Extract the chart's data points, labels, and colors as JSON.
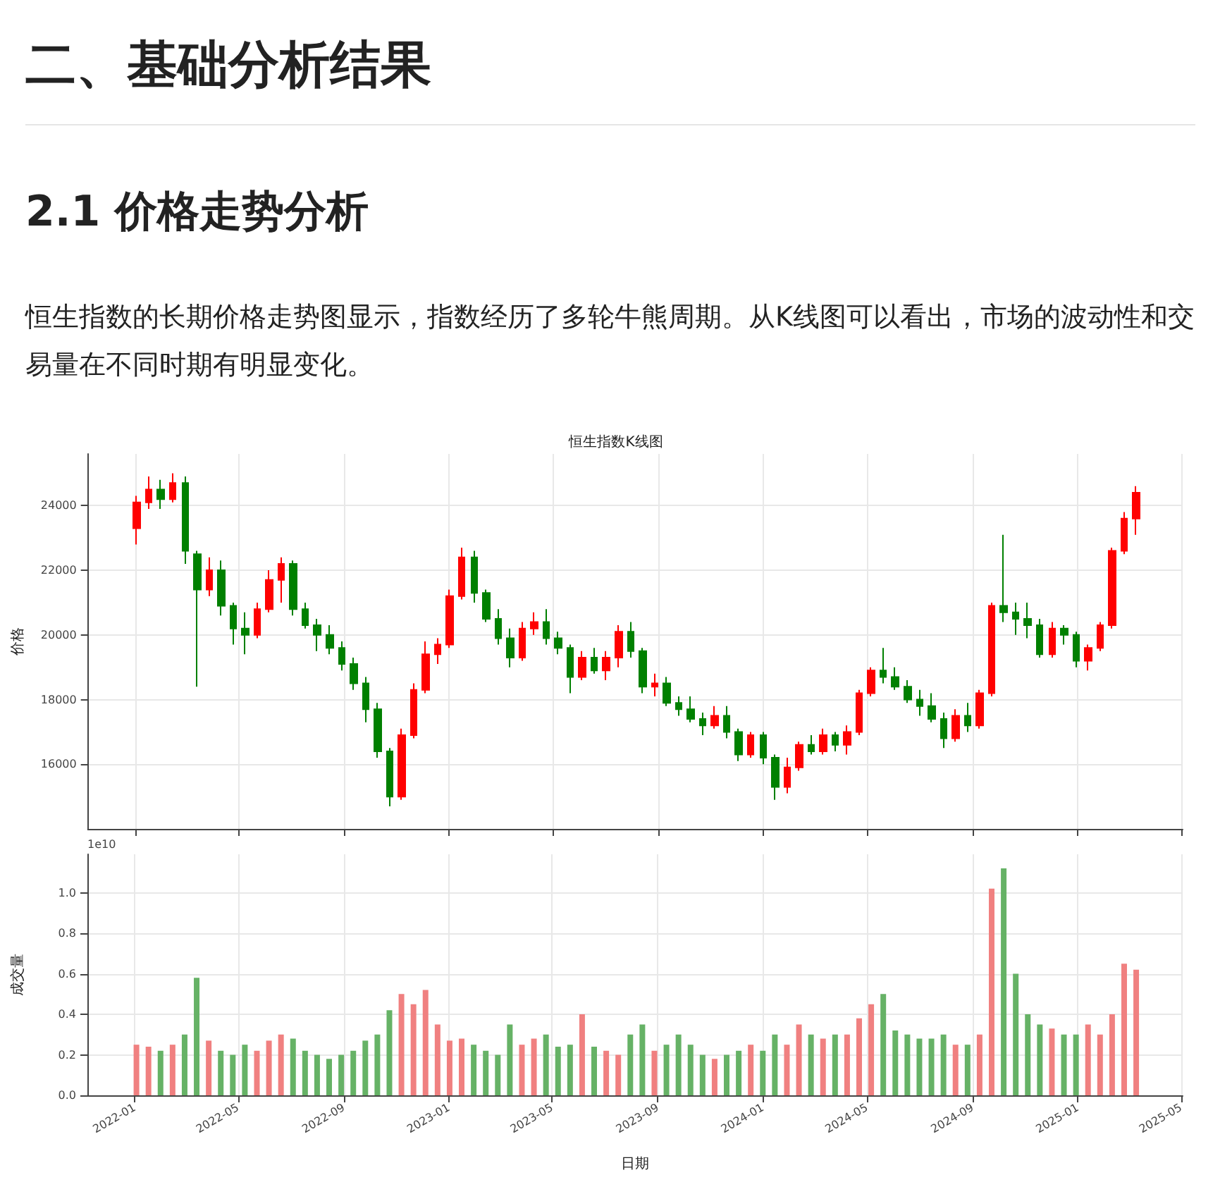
{
  "chart_data": [
    {
      "type": "candlestick",
      "title": "恒生指数K线图",
      "ylabel": "价格",
      "annotations": [
        "二、基础分析结果",
        "2.1 价格走势分析",
        "恒生指数的长期价格走势图显示，指数经历了多轮牛熊周期。从K线图可以看出，市场的波动性和交易量在不同时期有明显变化。"
      ],
      "x": [
        "2022-01-03",
        "2022-01-17",
        "2022-01-31",
        "2022-02-14",
        "2022-02-28",
        "2022-03-14",
        "2022-03-28",
        "2022-04-11",
        "2022-04-25",
        "2022-05-09",
        "2022-05-23",
        "2022-06-06",
        "2022-06-20",
        "2022-07-04",
        "2022-07-18",
        "2022-08-01",
        "2022-08-15",
        "2022-08-29",
        "2022-09-12",
        "2022-09-26",
        "2022-10-10",
        "2022-10-24",
        "2022-11-07",
        "2022-11-21",
        "2022-12-05",
        "2022-12-19",
        "2023-01-02",
        "2023-01-16",
        "2023-01-30",
        "2023-02-13",
        "2023-02-27",
        "2023-03-13",
        "2023-03-27",
        "2023-04-10",
        "2023-04-24",
        "2023-05-08",
        "2023-05-22",
        "2023-06-05",
        "2023-06-19",
        "2023-07-03",
        "2023-07-17",
        "2023-07-31",
        "2023-08-14",
        "2023-08-28",
        "2023-09-11",
        "2023-09-25",
        "2023-10-09",
        "2023-10-23",
        "2023-11-06",
        "2023-11-20",
        "2023-12-04",
        "2023-12-18",
        "2024-01-01",
        "2024-01-15",
        "2024-01-29",
        "2024-02-12",
        "2024-02-26",
        "2024-03-11",
        "2024-03-25",
        "2024-04-08",
        "2024-04-22",
        "2024-05-06",
        "2024-05-20",
        "2024-06-03",
        "2024-06-17",
        "2024-07-01",
        "2024-07-15",
        "2024-07-29",
        "2024-08-12",
        "2024-08-26",
        "2024-09-09",
        "2024-09-23",
        "2024-10-07",
        "2024-10-21",
        "2024-11-04",
        "2024-11-18",
        "2024-12-02",
        "2024-12-16",
        "2024-12-30",
        "2025-01-13",
        "2025-01-27",
        "2025-02-10",
        "2025-02-24",
        "2025-03-10"
      ],
      "ohlc": [
        [
          23300,
          24300,
          22800,
          24100
        ],
        [
          24100,
          24900,
          23900,
          24500
        ],
        [
          24500,
          24800,
          23900,
          24200
        ],
        [
          24200,
          25000,
          24100,
          24700
        ],
        [
          24700,
          24900,
          22200,
          22600
        ],
        [
          22500,
          22600,
          18400,
          21400
        ],
        [
          21400,
          22400,
          21200,
          22000
        ],
        [
          22000,
          22300,
          20600,
          20900
        ],
        [
          20900,
          21000,
          19700,
          20200
        ],
        [
          20200,
          20700,
          19400,
          20000
        ],
        [
          20000,
          21000,
          19900,
          20800
        ],
        [
          20800,
          22000,
          20700,
          21700
        ],
        [
          21700,
          22400,
          21000,
          22200
        ],
        [
          22200,
          22300,
          20600,
          20800
        ],
        [
          20800,
          21000,
          20200,
          20300
        ],
        [
          20300,
          20500,
          19500,
          20000
        ],
        [
          20000,
          20300,
          19400,
          19600
        ],
        [
          19600,
          19800,
          18900,
          19100
        ],
        [
          19100,
          19300,
          18300,
          18500
        ],
        [
          18500,
          18700,
          17300,
          17700
        ],
        [
          17700,
          17900,
          16200,
          16400
        ],
        [
          16400,
          16500,
          14700,
          15000
        ],
        [
          15000,
          17100,
          14900,
          16900
        ],
        [
          16900,
          18500,
          16800,
          18300
        ],
        [
          18300,
          19800,
          18200,
          19400
        ],
        [
          19400,
          19900,
          19100,
          19700
        ],
        [
          19700,
          21400,
          19600,
          21200
        ],
        [
          21200,
          22700,
          21100,
          22400
        ],
        [
          22400,
          22600,
          21000,
          21300
        ],
        [
          21300,
          21400,
          20400,
          20500
        ],
        [
          20500,
          20800,
          19700,
          19900
        ],
        [
          19900,
          20200,
          19000,
          19300
        ],
        [
          19300,
          20400,
          19200,
          20200
        ],
        [
          20200,
          20700,
          20000,
          20400
        ],
        [
          20400,
          20800,
          19700,
          19900
        ],
        [
          19900,
          20100,
          19400,
          19600
        ],
        [
          19600,
          19700,
          18200,
          18700
        ],
        [
          18700,
          19500,
          18600,
          19300
        ],
        [
          19300,
          19600,
          18800,
          18900
        ],
        [
          18900,
          19500,
          18600,
          19300
        ],
        [
          19300,
          20300,
          19000,
          20100
        ],
        [
          20100,
          20400,
          19300,
          19500
        ],
        [
          19500,
          19600,
          18200,
          18400
        ],
        [
          18400,
          18800,
          18100,
          18500
        ],
        [
          18500,
          18700,
          17800,
          17900
        ],
        [
          17900,
          18100,
          17500,
          17700
        ],
        [
          17700,
          18100,
          17300,
          17400
        ],
        [
          17400,
          17600,
          16900,
          17200
        ],
        [
          17200,
          17800,
          17100,
          17500
        ],
        [
          17500,
          17800,
          16800,
          17000
        ],
        [
          17000,
          17100,
          16100,
          16300
        ],
        [
          16300,
          17000,
          16200,
          16900
        ],
        [
          16900,
          17000,
          16000,
          16200
        ],
        [
          16200,
          16300,
          14900,
          15300
        ],
        [
          15300,
          16200,
          15100,
          15900
        ],
        [
          15900,
          16700,
          15800,
          16600
        ],
        [
          16600,
          16900,
          16300,
          16400
        ],
        [
          16400,
          17100,
          16300,
          16900
        ],
        [
          16900,
          17000,
          16400,
          16600
        ],
        [
          16600,
          17200,
          16300,
          17000
        ],
        [
          17000,
          18300,
          16900,
          18200
        ],
        [
          18200,
          19000,
          18100,
          18900
        ],
        [
          18900,
          19600,
          18500,
          18700
        ],
        [
          18700,
          19000,
          18300,
          18400
        ],
        [
          18400,
          18600,
          17900,
          18000
        ],
        [
          18000,
          18300,
          17500,
          17800
        ],
        [
          17800,
          18200,
          17300,
          17400
        ],
        [
          17400,
          17600,
          16500,
          16800
        ],
        [
          16800,
          17700,
          16700,
          17500
        ],
        [
          17500,
          17900,
          17000,
          17200
        ],
        [
          17200,
          18300,
          17100,
          18200
        ],
        [
          18200,
          21000,
          18100,
          20900
        ],
        [
          20900,
          23100,
          20400,
          20700
        ],
        [
          20700,
          21000,
          20000,
          20500
        ],
        [
          20500,
          21000,
          19900,
          20300
        ],
        [
          20300,
          20500,
          19300,
          19400
        ],
        [
          19400,
          20400,
          19300,
          20200
        ],
        [
          20200,
          20300,
          19700,
          20000
        ],
        [
          20000,
          20100,
          19000,
          19200
        ],
        [
          19200,
          19700,
          18900,
          19600
        ],
        [
          19600,
          20400,
          19500,
          20300
        ],
        [
          20300,
          22700,
          20200,
          22600
        ],
        [
          22600,
          23800,
          22500,
          23600
        ],
        [
          23600,
          24600,
          23100,
          24400
        ]
      ],
      "colors": [
        "#ff0000",
        "#ff0000",
        "#008000",
        "#ff0000",
        "#008000",
        "#008000",
        "#ff0000",
        "#008000",
        "#008000",
        "#008000",
        "#ff0000",
        "#ff0000",
        "#ff0000",
        "#008000",
        "#008000",
        "#008000",
        "#008000",
        "#008000",
        "#008000",
        "#008000",
        "#008000",
        "#008000",
        "#ff0000",
        "#ff0000",
        "#ff0000",
        "#ff0000",
        "#ff0000",
        "#ff0000",
        "#008000",
        "#008000",
        "#008000",
        "#008000",
        "#ff0000",
        "#ff0000",
        "#008000",
        "#008000",
        "#008000",
        "#ff0000",
        "#008000",
        "#ff0000",
        "#ff0000",
        "#008000",
        "#008000",
        "#ff0000",
        "#008000",
        "#008000",
        "#008000",
        "#008000",
        "#ff0000",
        "#008000",
        "#008000",
        "#ff0000",
        "#008000",
        "#008000",
        "#ff0000",
        "#ff0000",
        "#008000",
        "#ff0000",
        "#008000",
        "#ff0000",
        "#ff0000",
        "#ff0000",
        "#008000",
        "#008000",
        "#008000",
        "#008000",
        "#008000",
        "#008000",
        "#ff0000",
        "#008000",
        "#ff0000",
        "#ff0000",
        "#008000",
        "#008000",
        "#008000",
        "#008000",
        "#ff0000",
        "#008000",
        "#008000",
        "#ff0000",
        "#ff0000",
        "#ff0000",
        "#ff0000",
        "#ff0000"
      ],
      "xlim": [
        "2021-11-07",
        "2025-05-03"
      ],
      "xticks": [
        "2022-01",
        "2022-05",
        "2022-09",
        "2023-01",
        "2023-05",
        "2023-09",
        "2024-01",
        "2024-05",
        "2024-09",
        "2025-01",
        "2025-05"
      ],
      "ylim": [
        14000,
        25600
      ],
      "yticks": [
        16000,
        18000,
        20000,
        22000,
        24000
      ],
      "tick_labels": "y",
      "grid": true
    },
    {
      "type": "bar",
      "xlabel": "日期",
      "ylabel": "成交量",
      "annotations": [
        "1e10"
      ],
      "x": [
        "2022-01-03",
        "2022-01-17",
        "2022-01-31",
        "2022-02-14",
        "2022-02-28",
        "2022-03-14",
        "2022-03-28",
        "2022-04-11",
        "2022-04-25",
        "2022-05-09",
        "2022-05-23",
        "2022-06-06",
        "2022-06-20",
        "2022-07-04",
        "2022-07-18",
        "2022-08-01",
        "2022-08-15",
        "2022-08-29",
        "2022-09-12",
        "2022-09-26",
        "2022-10-10",
        "2022-10-24",
        "2022-11-07",
        "2022-11-21",
        "2022-12-05",
        "2022-12-19",
        "2023-01-02",
        "2023-01-16",
        "2023-01-30",
        "2023-02-13",
        "2023-02-27",
        "2023-03-13",
        "2023-03-27",
        "2023-04-10",
        "2023-04-24",
        "2023-05-08",
        "2023-05-22",
        "2023-06-05",
        "2023-06-19",
        "2023-07-03",
        "2023-07-17",
        "2023-07-31",
        "2023-08-14",
        "2023-08-28",
        "2023-09-11",
        "2023-09-25",
        "2023-10-09",
        "2023-10-23",
        "2023-11-06",
        "2023-11-20",
        "2023-12-04",
        "2023-12-18",
        "2024-01-01",
        "2024-01-15",
        "2024-01-29",
        "2024-02-12",
        "2024-02-26",
        "2024-03-11",
        "2024-03-25",
        "2024-04-08",
        "2024-04-22",
        "2024-05-06",
        "2024-05-20",
        "2024-06-03",
        "2024-06-17",
        "2024-07-01",
        "2024-07-15",
        "2024-07-29",
        "2024-08-12",
        "2024-08-26",
        "2024-09-09",
        "2024-09-23",
        "2024-10-07",
        "2024-10-21",
        "2024-11-04",
        "2024-11-18",
        "2024-12-02",
        "2024-12-16",
        "2024-12-30",
        "2025-01-13",
        "2025-01-27",
        "2025-02-10",
        "2025-02-24",
        "2025-03-10"
      ],
      "values": [
        0.25,
        0.24,
        0.22,
        0.25,
        0.3,
        0.58,
        0.27,
        0.22,
        0.2,
        0.25,
        0.22,
        0.27,
        0.3,
        0.28,
        0.22,
        0.2,
        0.18,
        0.2,
        0.22,
        0.27,
        0.3,
        0.42,
        0.5,
        0.45,
        0.52,
        0.35,
        0.27,
        0.28,
        0.25,
        0.22,
        0.2,
        0.35,
        0.25,
        0.28,
        0.3,
        0.24,
        0.25,
        0.4,
        0.24,
        0.22,
        0.2,
        0.3,
        0.35,
        0.22,
        0.25,
        0.3,
        0.25,
        0.2,
        0.18,
        0.2,
        0.22,
        0.25,
        0.22,
        0.3,
        0.25,
        0.35,
        0.3,
        0.28,
        0.3,
        0.3,
        0.38,
        0.45,
        0.5,
        0.32,
        0.3,
        0.28,
        0.28,
        0.3,
        0.25,
        0.25,
        0.3,
        1.02,
        1.12,
        0.6,
        0.4,
        0.35,
        0.33,
        0.3,
        0.3,
        0.35,
        0.3,
        0.4,
        0.65,
        0.62
      ],
      "colors": [
        "#f08080",
        "#f08080",
        "#66b266",
        "#f08080",
        "#66b266",
        "#66b266",
        "#f08080",
        "#66b266",
        "#66b266",
        "#66b266",
        "#f08080",
        "#f08080",
        "#f08080",
        "#66b266",
        "#66b266",
        "#66b266",
        "#66b266",
        "#66b266",
        "#66b266",
        "#66b266",
        "#66b266",
        "#66b266",
        "#f08080",
        "#f08080",
        "#f08080",
        "#f08080",
        "#f08080",
        "#f08080",
        "#66b266",
        "#66b266",
        "#66b266",
        "#66b266",
        "#f08080",
        "#f08080",
        "#66b266",
        "#66b266",
        "#66b266",
        "#f08080",
        "#66b266",
        "#f08080",
        "#f08080",
        "#66b266",
        "#66b266",
        "#f08080",
        "#66b266",
        "#66b266",
        "#66b266",
        "#66b266",
        "#f08080",
        "#66b266",
        "#66b266",
        "#f08080",
        "#66b266",
        "#66b266",
        "#f08080",
        "#f08080",
        "#66b266",
        "#f08080",
        "#66b266",
        "#f08080",
        "#f08080",
        "#f08080",
        "#66b266",
        "#66b266",
        "#66b266",
        "#66b266",
        "#66b266",
        "#66b266",
        "#f08080",
        "#66b266",
        "#f08080",
        "#f08080",
        "#66b266",
        "#66b266",
        "#66b266",
        "#66b266",
        "#f08080",
        "#66b266",
        "#66b266",
        "#f08080",
        "#f08080",
        "#f08080",
        "#f08080",
        "#f08080"
      ],
      "xlim": [
        "2021-11-07",
        "2025-05-03"
      ],
      "xticks": [
        "2022-01",
        "2022-05",
        "2022-09",
        "2023-01",
        "2023-05",
        "2023-09",
        "2024-01",
        "2024-05",
        "2024-09",
        "2025-01",
        "2025-05"
      ],
      "ylim": [
        0,
        1.19
      ],
      "yticks": [
        {
          "value": 0,
          "label": "0.0"
        },
        {
          "value": 0.2,
          "label": "0.2"
        },
        {
          "value": 0.4,
          "label": "0.4"
        },
        {
          "value": 0.6,
          "label": "0.6"
        },
        {
          "value": 0.8,
          "label": "0.8"
        },
        {
          "value": 1.0,
          "label": "1.0"
        }
      ],
      "grid": true
    }
  ]
}
